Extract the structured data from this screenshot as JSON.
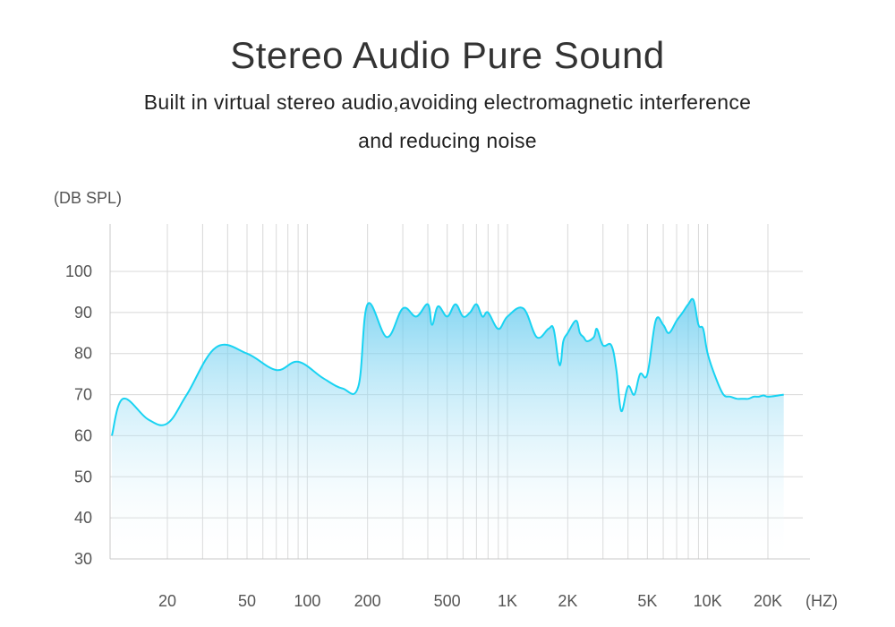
{
  "header": {
    "title": "Stereo Audio Pure Sound",
    "subtitle_line1": "Built in virtual stereo audio,avoiding electromagnetic interference",
    "subtitle_line2": "and reducing noise"
  },
  "colors": {
    "curve": "#19d3f2",
    "fill_top": "#5cc8ee",
    "fill_bottom": "#ffffff",
    "grid": "#d8d8d8",
    "text": "#555555"
  },
  "chart_data": {
    "type": "area",
    "ylabel": "(DB SPL)",
    "xlabel": "(HZ)",
    "x_scale": "log",
    "y_ticks": [
      100,
      90,
      80,
      70,
      60,
      50,
      40,
      30
    ],
    "ylim": [
      30,
      100
    ],
    "x_tick_labels": [
      "20",
      "50",
      "100",
      "200",
      "500",
      "1K",
      "2K",
      "5K",
      "10K",
      "20K"
    ],
    "x_tick_values": [
      20,
      50,
      100,
      200,
      500,
      1000,
      2000,
      5000,
      10000,
      20000
    ],
    "grid": true,
    "series": [
      {
        "x": [
          10,
          12,
          16,
          20,
          25,
          35,
          50,
          70,
          90,
          120,
          150,
          180,
          200,
          250,
          300,
          350,
          400,
          420,
          450,
          500,
          550,
          600,
          650,
          700,
          750,
          800,
          900,
          1000,
          1200,
          1400,
          1600,
          1700,
          1800,
          1850,
          1900,
          2000,
          2200,
          2300,
          2400,
          2500,
          2700,
          2800,
          3000,
          3300,
          3500,
          3700,
          4000,
          4300,
          4600,
          5000,
          5500,
          6000,
          6400,
          7000,
          7500,
          8000,
          8500,
          9000,
          9500,
          10000,
          11000,
          12000,
          13000,
          14000,
          15000,
          16000,
          17000,
          18000,
          19000,
          20000,
          22000,
          24000
        ],
        "y": [
          60,
          69,
          64,
          63,
          70,
          81.5,
          80,
          76,
          78,
          74,
          71.5,
          72,
          92,
          84,
          91,
          89,
          92,
          87,
          91.5,
          89,
          92,
          89,
          90,
          92,
          89,
          90,
          86,
          89,
          91,
          84,
          86,
          86,
          78,
          78,
          83,
          85,
          88,
          85,
          84,
          83,
          84,
          86,
          82,
          82,
          76,
          66,
          72,
          70,
          75,
          75,
          88,
          87,
          85,
          88,
          90,
          92,
          93,
          87,
          86,
          80,
          74,
          70,
          69.5,
          69,
          69,
          69,
          69.5,
          69.5,
          69.8,
          69.5,
          69.7,
          70
        ]
      }
    ]
  }
}
